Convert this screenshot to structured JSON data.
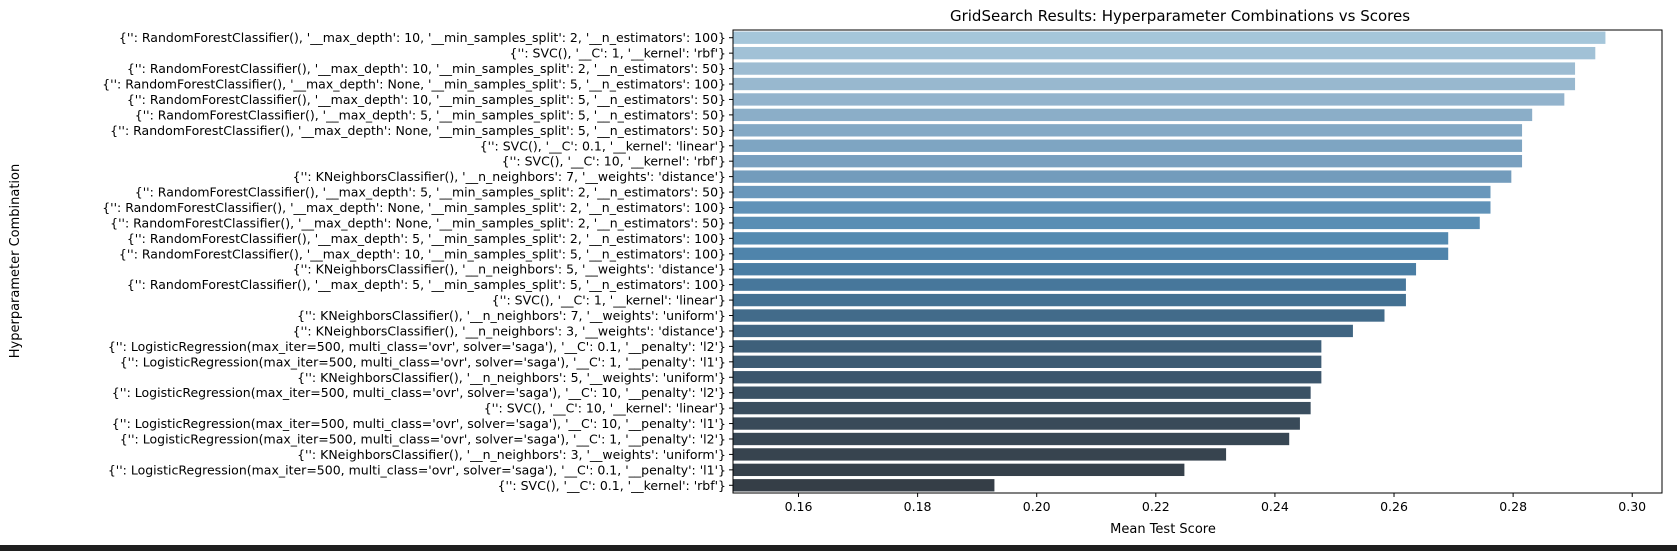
{
  "chart_data": {
    "type": "bar",
    "orientation": "horizontal",
    "title": "GridSearch Results: Hyperparameter Combinations vs Scores",
    "xlabel": "Mean Test Score",
    "ylabel": "Hyperparameter Combination",
    "xlim": [
      0.149,
      0.305
    ],
    "xticks": [
      0.16,
      0.18,
      0.2,
      0.22,
      0.24,
      0.26,
      0.28,
      0.3
    ],
    "xtick_labels": [
      "0.16",
      "0.18",
      "0.20",
      "0.22",
      "0.24",
      "0.26",
      "0.28",
      "0.30"
    ],
    "grid": false,
    "palette": "Blues_d (light blue to dark slate)",
    "categories": [
      "{'': RandomForestClassifier(), '__max_depth': 10, '__min_samples_split': 2, '__n_estimators': 100}",
      "{'': SVC(), '__C': 1, '__kernel': 'rbf'}",
      "{'': RandomForestClassifier(), '__max_depth': 10, '__min_samples_split': 2, '__n_estimators': 50}",
      "{'': RandomForestClassifier(), '__max_depth': None, '__min_samples_split': 5, '__n_estimators': 100}",
      "{'': RandomForestClassifier(), '__max_depth': 10, '__min_samples_split': 5, '__n_estimators': 50}",
      "{'': RandomForestClassifier(), '__max_depth': 5, '__min_samples_split': 5, '__n_estimators': 50}",
      "{'': RandomForestClassifier(), '__max_depth': None, '__min_samples_split': 5, '__n_estimators': 50}",
      "{'': SVC(), '__C': 0.1, '__kernel': 'linear'}",
      "{'': SVC(), '__C': 10, '__kernel': 'rbf'}",
      "{'': KNeighborsClassifier(), '__n_neighbors': 7, '__weights': 'distance'}",
      "{'': RandomForestClassifier(), '__max_depth': 5, '__min_samples_split': 2, '__n_estimators': 50}",
      "{'': RandomForestClassifier(), '__max_depth': None, '__min_samples_split': 2, '__n_estimators': 100}",
      "{'': RandomForestClassifier(), '__max_depth': None, '__min_samples_split': 2, '__n_estimators': 50}",
      "{'': RandomForestClassifier(), '__max_depth': 5, '__min_samples_split': 2, '__n_estimators': 100}",
      "{'': RandomForestClassifier(), '__max_depth': 10, '__min_samples_split': 5, '__n_estimators': 100}",
      "{'': KNeighborsClassifier(), '__n_neighbors': 5, '__weights': 'distance'}",
      "{'': RandomForestClassifier(), '__max_depth': 5, '__min_samples_split': 5, '__n_estimators': 100}",
      "{'': SVC(), '__C': 1, '__kernel': 'linear'}",
      "{'': KNeighborsClassifier(), '__n_neighbors': 7, '__weights': 'uniform'}",
      "{'': KNeighborsClassifier(), '__n_neighbors': 3, '__weights': 'distance'}",
      "{'': LogisticRegression(max_iter=500, multi_class='ovr', solver='saga'), '__C': 0.1, '__penalty': 'l2'}",
      "{'': LogisticRegression(max_iter=500, multi_class='ovr', solver='saga'), '__C': 1, '__penalty': 'l1'}",
      "{'': KNeighborsClassifier(), '__n_neighbors': 5, '__weights': 'uniform'}",
      "{'': LogisticRegression(max_iter=500, multi_class='ovr', solver='saga'), '__C': 10, '__penalty': 'l2'}",
      "{'': SVC(), '__C': 10, '__kernel': 'linear'}",
      "{'': LogisticRegression(max_iter=500, multi_class='ovr', solver='saga'), '__C': 10, '__penalty': 'l1'}",
      "{'': LogisticRegression(max_iter=500, multi_class='ovr', solver='saga'), '__C': 1, '__penalty': 'l2'}",
      "{'': KNeighborsClassifier(), '__n_neighbors': 3, '__weights': 'uniform'}",
      "{'': LogisticRegression(max_iter=500, multi_class='ovr', solver='saga'), '__C': 0.1, '__penalty': 'l1'}",
      "{'': SVC(), '__C': 0.1, '__kernel': 'rbf'}"
    ],
    "values": [
      0.2955,
      0.2938,
      0.2904,
      0.2904,
      0.2886,
      0.2832,
      0.2815,
      0.2815,
      0.2815,
      0.2797,
      0.2762,
      0.2762,
      0.2744,
      0.2691,
      0.2691,
      0.2637,
      0.262,
      0.262,
      0.2584,
      0.2531,
      0.2478,
      0.2478,
      0.2478,
      0.246,
      0.246,
      0.2442,
      0.2424,
      0.2318,
      0.2248,
      0.1929
    ],
    "colors": [
      "#a5c6da",
      "#a1c1d6",
      "#9dbcd2",
      "#98b8cf",
      "#93b3cc",
      "#8baec8",
      "#84a9c5",
      "#7ea5c2",
      "#79a0bf",
      "#739cbc",
      "#6997bb",
      "#6092b8",
      "#598eb4",
      "#548ab0",
      "#4f84ab",
      "#4a7ea4",
      "#47779b",
      "#447192",
      "#426b8a",
      "#406582",
      "#3e607a",
      "#3d5b73",
      "#3c566c",
      "#3b5265",
      "#3a4e5f",
      "#394a59",
      "#384754",
      "#37444f",
      "#36414b",
      "#353e47"
    ]
  }
}
